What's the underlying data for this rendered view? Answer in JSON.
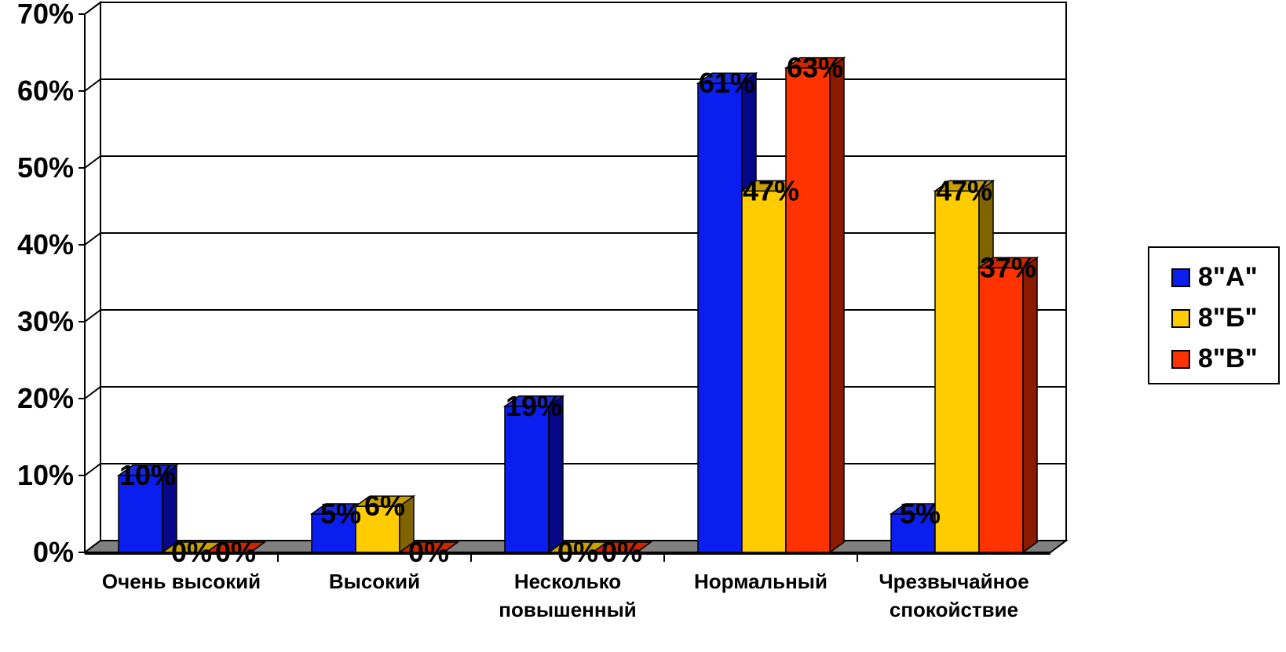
{
  "chart_data": {
    "type": "bar",
    "categories": [
      [
        "Очень высокий"
      ],
      [
        "Высокий"
      ],
      [
        "Несколько",
        "повышенный"
      ],
      [
        "Нормальный"
      ],
      [
        "Чрезвычайное",
        "спокойствие"
      ]
    ],
    "series": [
      {
        "name": "8\"А\"",
        "values": [
          10,
          5,
          19,
          61,
          5
        ],
        "labels": [
          "10%",
          "5%",
          "19%",
          "61%",
          "5%"
        ],
        "color": "#0a1ef0",
        "side_color": "#07078a",
        "top_color": "#1a2ad8"
      },
      {
        "name": "8\"Б\"",
        "values": [
          0,
          6,
          0,
          47,
          47
        ],
        "labels": [
          "0%",
          "6%",
          "0%",
          "47%",
          "47%"
        ],
        "color": "#ffcc00",
        "side_color": "#806400",
        "top_color": "#c8a000"
      },
      {
        "name": "8\"В\"",
        "values": [
          0,
          0,
          0,
          63,
          37
        ],
        "labels": [
          "0%",
          "0%",
          "0%",
          "63%",
          "37%"
        ],
        "color": "#ff3300",
        "side_color": "#8a1a00",
        "top_color": "#c82800"
      }
    ],
    "y_ticks": [
      "0%",
      "10%",
      "20%",
      "30%",
      "40%",
      "50%",
      "60%",
      "70%"
    ],
    "ylim": [
      0,
      70
    ],
    "grid": true,
    "legend_position": "right",
    "floor_color": "#808080"
  }
}
